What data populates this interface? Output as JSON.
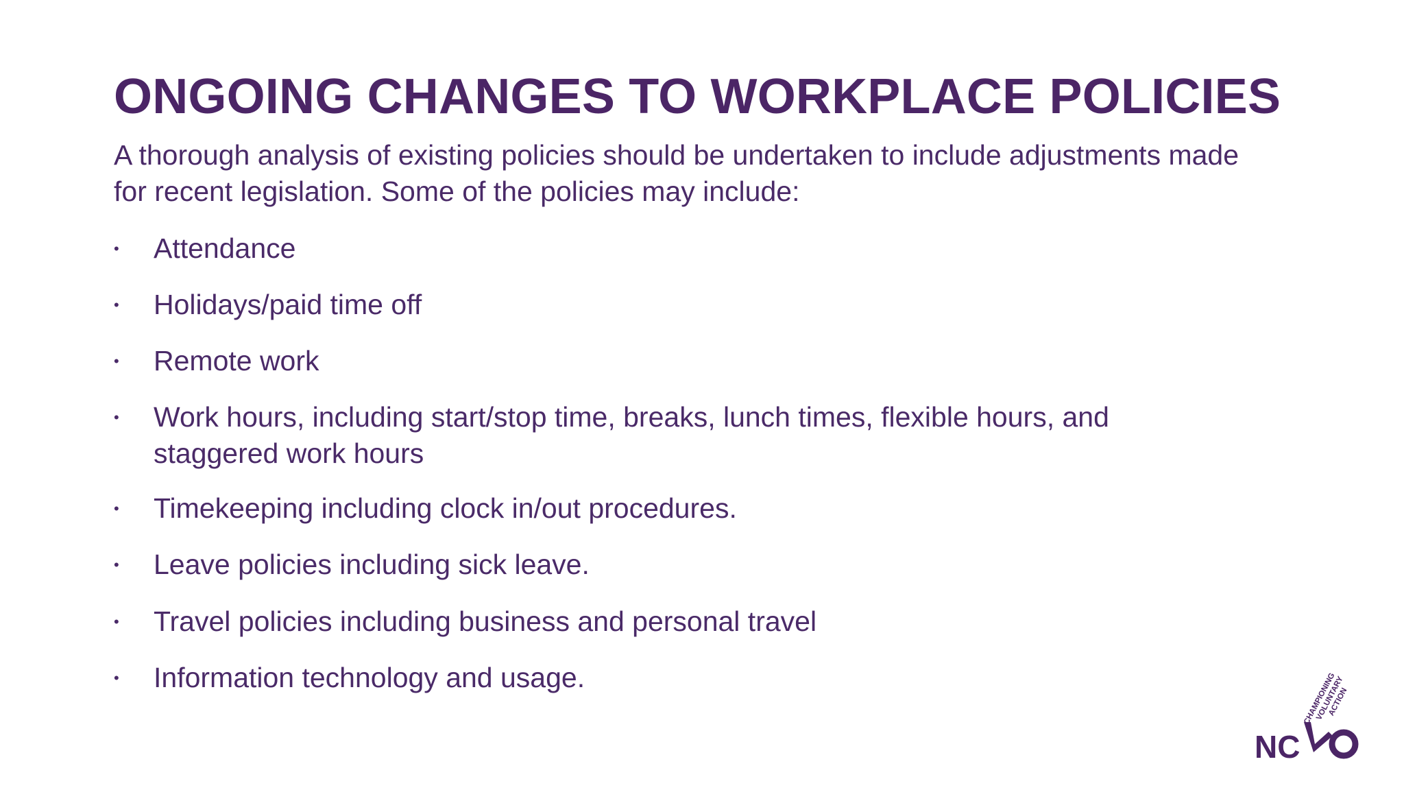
{
  "slide": {
    "title": "ONGOING CHANGES TO WORKPLACE POLICIES",
    "intro": "A thorough analysis of existing policies should be undertaken to include adjustments made for recent legislation. Some of the policies may include:",
    "bullet_glyph": "•",
    "bullets": [
      "Attendance",
      "Holidays/paid time off",
      "Remote work",
      "Work hours, including start/stop time, breaks, lunch times, flexible hours, and staggered work hours",
      "Timekeeping including clock in/out procedures.",
      "Leave policies including sick leave.",
      "Travel policies including business and personal travel",
      "Information technology and usage."
    ]
  },
  "logo": {
    "text": "NCVO",
    "tagline": "CHAMPIONING VOLUNTARY ACTION",
    "color": "#4b2566"
  }
}
